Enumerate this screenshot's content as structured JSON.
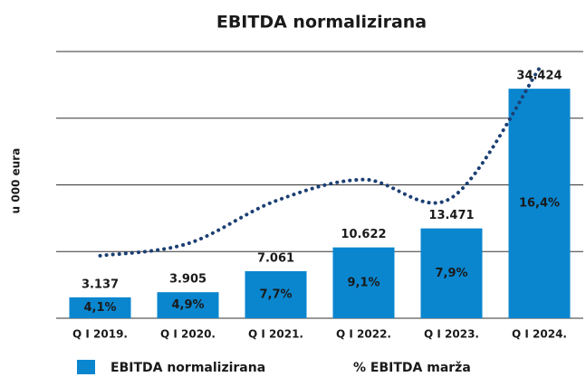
{
  "chart_data": {
    "type": "bar",
    "title": "EBITDA normalizirana",
    "y_label": "u 000 eura",
    "categories": [
      "Q I 2019.",
      "Q I 2020.",
      "Q I 2021.",
      "Q I 2022.",
      "Q I 2023.",
      "Q I 2024."
    ],
    "series": [
      {
        "name": "EBITDA normalizirana",
        "color": "#0a86cf",
        "values": [
          3137,
          3905,
          7061,
          10622,
          13471,
          34424
        ],
        "value_labels": [
          "3.137",
          "3.905",
          "7.061",
          "10.622",
          "13.471",
          "34.424"
        ]
      },
      {
        "name": "% EBITDA marža",
        "type": "line",
        "axis": "y2",
        "color": "#1c3f73",
        "values": [
          4.1,
          4.9,
          7.7,
          9.1,
          7.9,
          16.4
        ],
        "value_labels": [
          "4,1%",
          "4,9%",
          "7,7%",
          "9,1%",
          "7,9%",
          "16,4%"
        ]
      }
    ],
    "ylim": [
      0,
      40000
    ],
    "yticks": [
      0,
      10000,
      20000,
      30000,
      40000
    ],
    "y2lim": [
      0,
      17.5
    ],
    "grid": true
  }
}
